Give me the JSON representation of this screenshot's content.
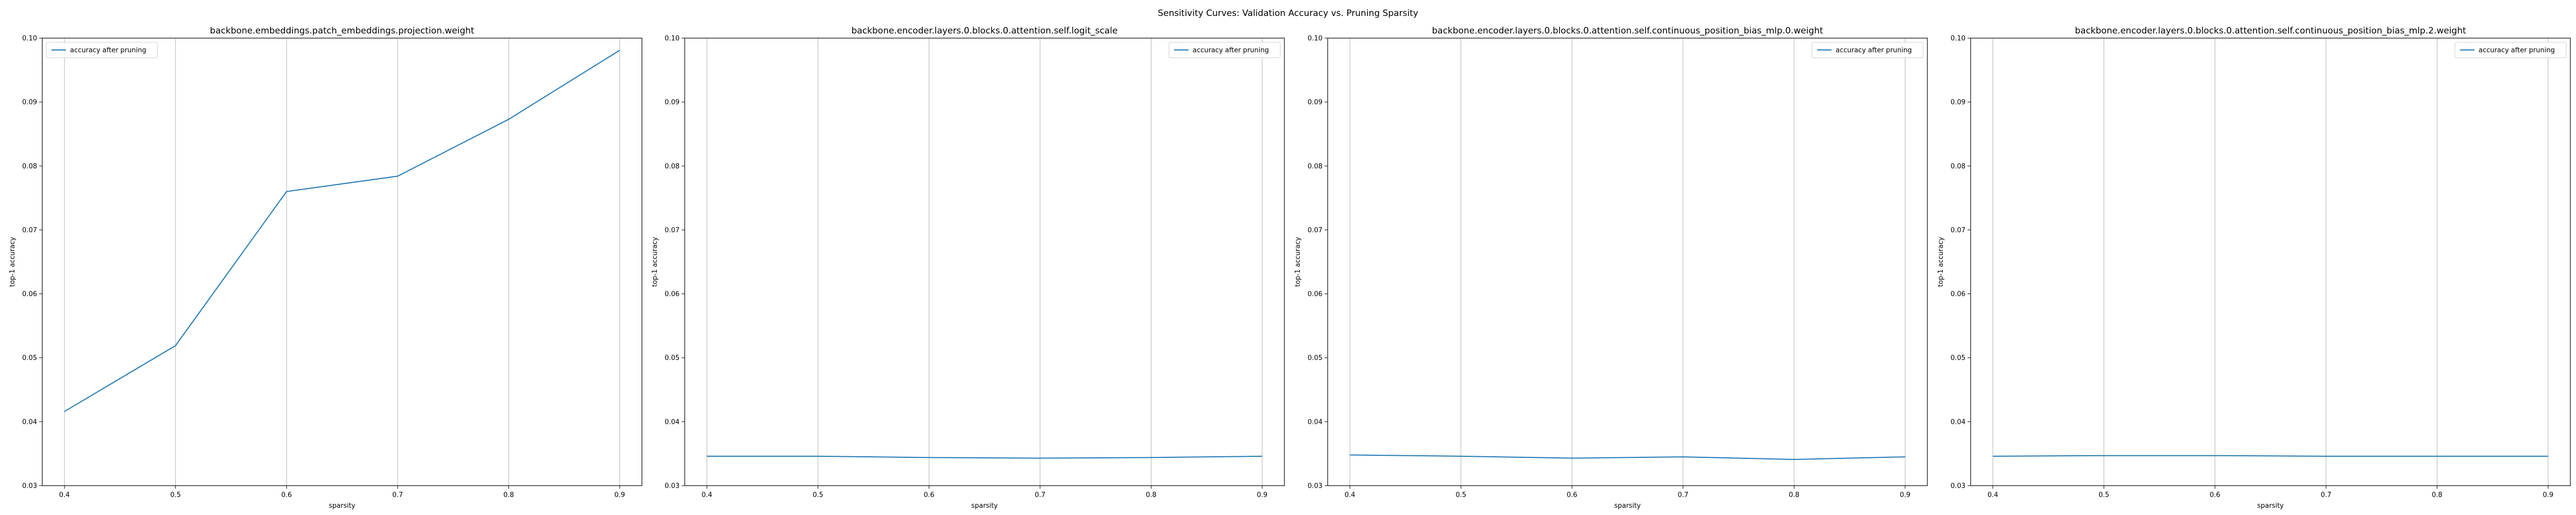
{
  "figure_title": "Sensitivity Curves: Validation Accuracy vs. Pruning Sparsity",
  "colors": {
    "series": "#1f77b4"
  },
  "chart_data": [
    {
      "type": "line",
      "title": "backbone.embeddings.patch_embeddings.projection.weight",
      "xlabel": "sparsity",
      "ylabel": "top-1 accuracy",
      "xlim": [
        0.38,
        0.92
      ],
      "ylim": [
        0.03,
        0.1
      ],
      "x_ticks": [
        "0.4",
        "0.5",
        "0.6",
        "0.7",
        "0.8",
        "0.9"
      ],
      "y_ticks": [
        "0.03",
        "0.04",
        "0.05",
        "0.06",
        "0.07",
        "0.08",
        "0.09",
        "0.10"
      ],
      "grid": "x",
      "legend": {
        "placement": "upper-left",
        "entries": [
          "accuracy after pruning"
        ]
      },
      "x": [
        0.4,
        0.5,
        0.6,
        0.7,
        0.8,
        0.9
      ],
      "series": [
        {
          "name": "accuracy after pruning",
          "values": [
            0.0416,
            0.0519,
            0.076,
            0.0784,
            0.0873,
            0.0981
          ]
        }
      ]
    },
    {
      "type": "line",
      "title": "backbone.encoder.layers.0.blocks.0.attention.self.logit_scale",
      "xlabel": "sparsity",
      "ylabel": "top-1 accuracy",
      "xlim": [
        0.38,
        0.92
      ],
      "ylim": [
        0.03,
        0.1
      ],
      "x_ticks": [
        "0.4",
        "0.5",
        "0.6",
        "0.7",
        "0.8",
        "0.9"
      ],
      "y_ticks": [
        "0.03",
        "0.04",
        "0.05",
        "0.06",
        "0.07",
        "0.08",
        "0.09",
        "0.10"
      ],
      "grid": "x",
      "legend": {
        "placement": "upper-right",
        "entries": [
          "accuracy after pruning"
        ]
      },
      "x": [
        0.4,
        0.5,
        0.6,
        0.7,
        0.8,
        0.9
      ],
      "series": [
        {
          "name": "accuracy after pruning",
          "values": [
            0.0346,
            0.0346,
            0.0344,
            0.0343,
            0.0344,
            0.0346
          ]
        }
      ]
    },
    {
      "type": "line",
      "title": "backbone.encoder.layers.0.blocks.0.attention.self.continuous_position_bias_mlp.0.weight",
      "xlabel": "sparsity",
      "ylabel": "top-1 accuracy",
      "xlim": [
        0.38,
        0.92
      ],
      "ylim": [
        0.03,
        0.1
      ],
      "x_ticks": [
        "0.4",
        "0.5",
        "0.6",
        "0.7",
        "0.8",
        "0.9"
      ],
      "y_ticks": [
        "0.03",
        "0.04",
        "0.05",
        "0.06",
        "0.07",
        "0.08",
        "0.09",
        "0.10"
      ],
      "grid": "x",
      "legend": {
        "placement": "upper-right",
        "entries": [
          "accuracy after pruning"
        ]
      },
      "x": [
        0.4,
        0.5,
        0.6,
        0.7,
        0.8,
        0.9
      ],
      "series": [
        {
          "name": "accuracy after pruning",
          "values": [
            0.0348,
            0.0346,
            0.0343,
            0.0345,
            0.0341,
            0.0345
          ]
        }
      ]
    },
    {
      "type": "line",
      "title": "backbone.encoder.layers.0.blocks.0.attention.self.continuous_position_bias_mlp.2.weight",
      "xlabel": "sparsity",
      "ylabel": "top-1 accuracy",
      "xlim": [
        0.38,
        0.92
      ],
      "ylim": [
        0.03,
        0.1
      ],
      "x_ticks": [
        "0.4",
        "0.5",
        "0.6",
        "0.7",
        "0.8",
        "0.9"
      ],
      "y_ticks": [
        "0.03",
        "0.04",
        "0.05",
        "0.06",
        "0.07",
        "0.08",
        "0.09",
        "0.10"
      ],
      "grid": "x",
      "legend": {
        "placement": "upper-right",
        "entries": [
          "accuracy after pruning"
        ]
      },
      "x": [
        0.4,
        0.5,
        0.6,
        0.7,
        0.8,
        0.9
      ],
      "series": [
        {
          "name": "accuracy after pruning",
          "values": [
            0.0346,
            0.0347,
            0.0347,
            0.0346,
            0.0346,
            0.0346
          ]
        }
      ]
    }
  ]
}
